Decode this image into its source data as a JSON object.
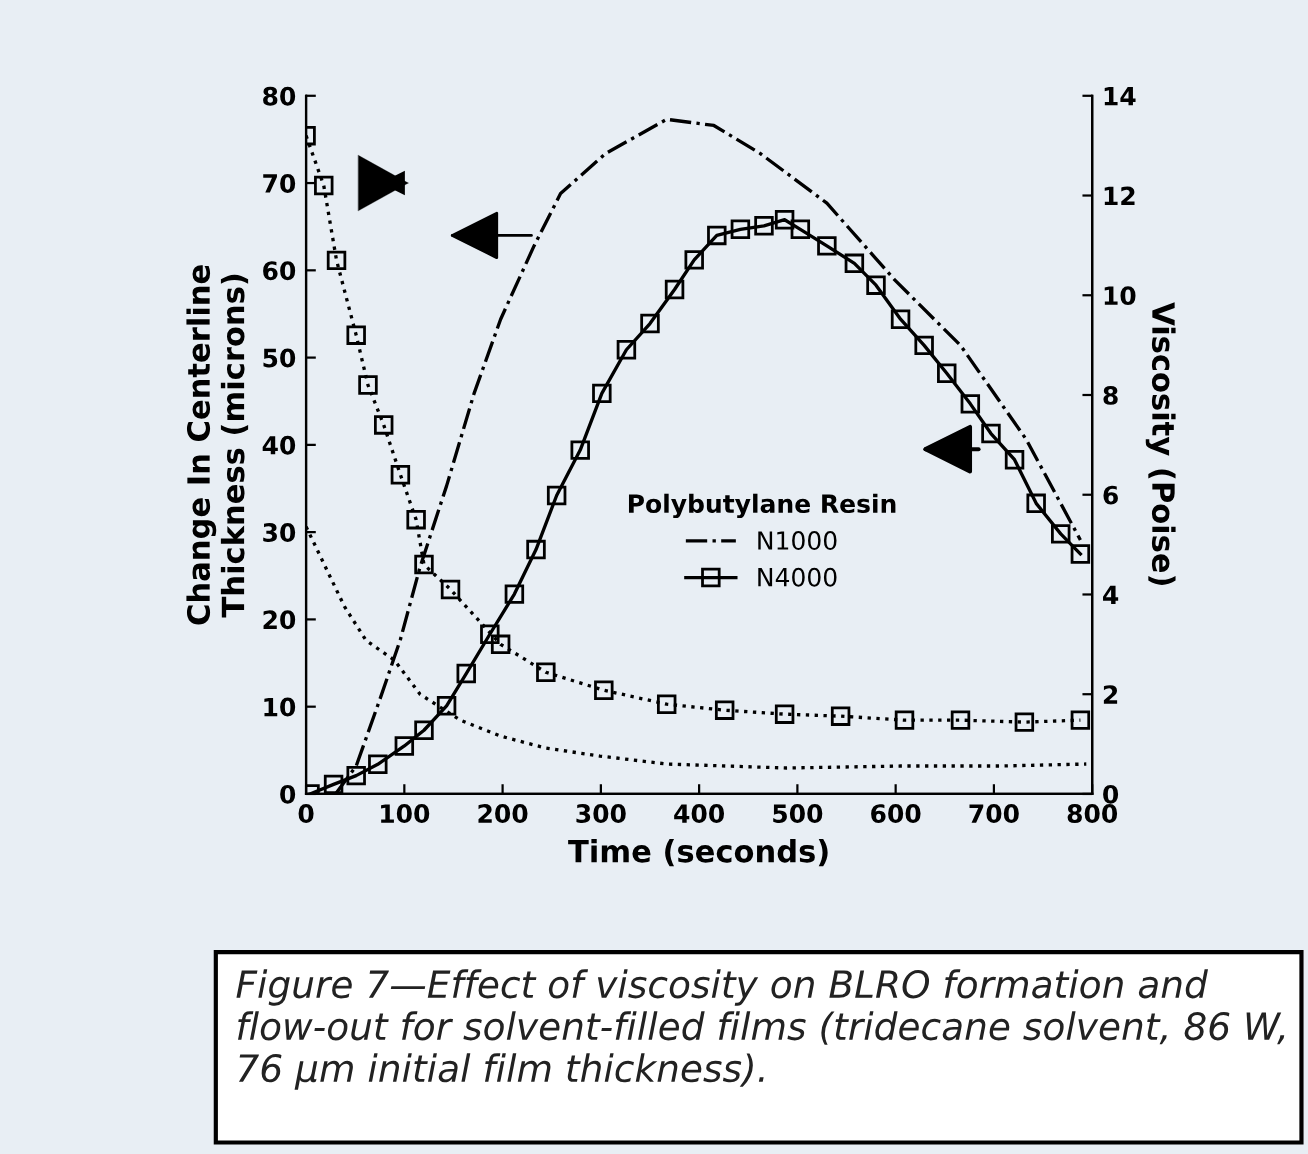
{
  "chart_data": {
    "type": "line",
    "xlabel": "Time (seconds)",
    "ylabel": "Change In Centerline\nThickness (microns)",
    "y2label": "Viscosity (Poise)",
    "legend_title": "Polybutylane Resin",
    "legend": "center",
    "grid": false,
    "xlim": [
      0,
      800
    ],
    "xticks": [
      0,
      100,
      200,
      300,
      400,
      500,
      600,
      700,
      800
    ],
    "ylim": [
      0,
      80
    ],
    "yticks": [
      0,
      10,
      20,
      30,
      40,
      50,
      60,
      70,
      80
    ],
    "y2lim": [
      0,
      14
    ],
    "y2ticks": [
      0,
      2,
      4,
      6,
      8,
      10,
      12,
      14
    ],
    "series": [
      {
        "name": "N1000",
        "color": "#000000",
        "line_style": "dashed",
        "marker": "none",
        "x": [
          30,
          51,
          75,
          96,
          116,
          143,
          171,
          198,
          232,
          259,
          305,
          367,
          415,
          462,
          530,
          599,
          666,
          733,
          788
        ],
        "values": [
          0,
          3.2,
          10.8,
          17.7,
          26,
          35.3,
          45.9,
          54.4,
          62.8,
          68.8,
          73.4,
          77.3,
          76.6,
          73.4,
          67.7,
          58.9,
          51.4,
          40.6,
          29.1
        ]
      },
      {
        "name": "N4000",
        "color": "#000000",
        "line_style": "solid",
        "marker": "square",
        "x": [
          4,
          28,
          51,
          73,
          100,
          120,
          143,
          163,
          187,
          212,
          234,
          255,
          279,
          301,
          326,
          350,
          375,
          395,
          418,
          442,
          466,
          487,
          503,
          530,
          558,
          580,
          605,
          629,
          652,
          676,
          697,
          721,
          743,
          768,
          788
        ],
        "values": [
          0,
          1.1,
          2.1,
          3.4,
          5.5,
          7.3,
          10.1,
          13.8,
          18.3,
          22.9,
          28,
          34.2,
          39.4,
          45.9,
          50.9,
          53.9,
          57.8,
          61.2,
          64,
          64.7,
          65.1,
          65.8,
          64.7,
          62.8,
          60.8,
          58.3,
          54.4,
          51.4,
          48.2,
          44.7,
          41.3,
          38.3,
          33.3,
          29.8,
          27.5
        ]
      },
      {
        "color": "#000000",
        "line_style": "dotted",
        "marker": "none",
        "axis": "y2",
        "x": [
          0,
          39,
          61,
          90,
          116,
          157,
          198,
          244,
          299,
          367,
          489,
          605,
          707,
          794
        ],
        "values": [
          5.36,
          3.76,
          3.08,
          2.68,
          2.0,
          1.48,
          1.16,
          0.92,
          0.76,
          0.6,
          0.52,
          0.56,
          0.56,
          0.6
        ]
      },
      {
        "color": "#000000",
        "line_style": "dotted",
        "marker": "square",
        "axis": "y2",
        "x": [
          0,
          18,
          31,
          51,
          63,
          79,
          96,
          112,
          120,
          147,
          198,
          244,
          303,
          367,
          426,
          487,
          544,
          609,
          666,
          731,
          788
        ],
        "values": [
          13.2,
          12.2,
          10.7,
          9.2,
          8.2,
          7.4,
          6.4,
          5.5,
          4.6,
          4.1,
          3.0,
          2.44,
          2.08,
          1.8,
          1.68,
          1.6,
          1.56,
          1.48,
          1.48,
          1.44,
          1.48
        ]
      }
    ],
    "annotations": [
      "Figure 7—Effect of viscosity on BLRO formation and flow-out for solvent-filled films (tridecane solvent, 86 W, 76 µm initial film thickness)."
    ]
  }
}
